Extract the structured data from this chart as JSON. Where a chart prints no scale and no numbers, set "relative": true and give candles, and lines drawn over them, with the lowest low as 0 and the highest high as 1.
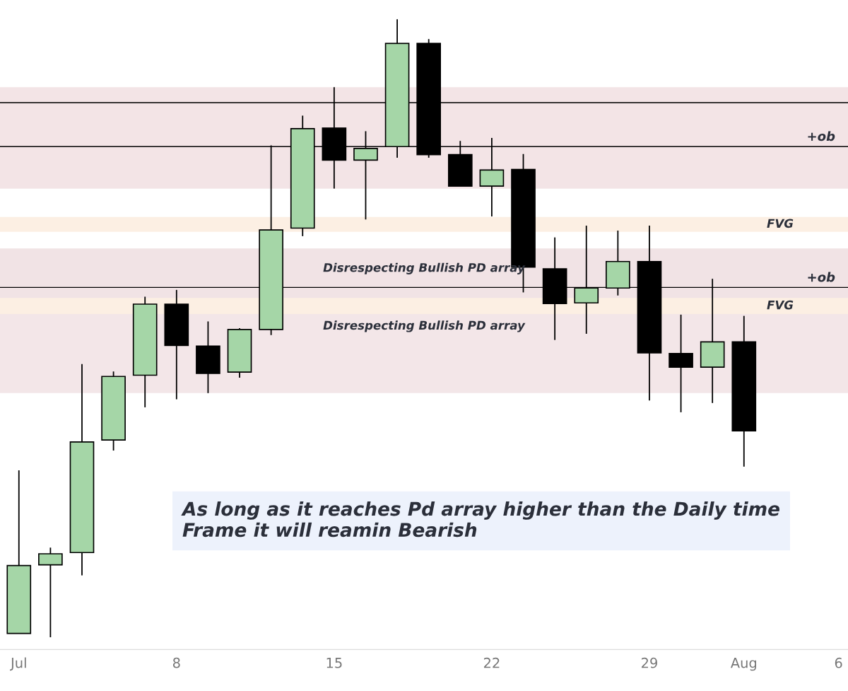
{
  "chart_data": {
    "type": "candlestick",
    "relative": true,
    "tick_labels": "x",
    "grid": false,
    "categories": [
      "Jul",
      null,
      null,
      null,
      null,
      "8",
      null,
      null,
      null,
      null,
      "15",
      null,
      null,
      null,
      null,
      "22",
      null,
      null,
      null,
      null,
      "29",
      null,
      null,
      "Aug",
      null,
      null,
      "6"
    ],
    "ohlc": [
      [
        0.006,
        0.27,
        0.006,
        0.116
      ],
      [
        0.117,
        0.145,
        0.0,
        0.135
      ],
      [
        0.137,
        0.442,
        0.1,
        0.316
      ],
      [
        0.319,
        0.43,
        0.302,
        0.422
      ],
      [
        0.424,
        0.551,
        0.372,
        0.539
      ],
      [
        0.539,
        0.562,
        0.385,
        0.472
      ],
      [
        0.471,
        0.511,
        0.395,
        0.427
      ],
      [
        0.429,
        0.5,
        0.42,
        0.498
      ],
      [
        0.498,
        0.796,
        0.489,
        0.659
      ],
      [
        0.662,
        0.844,
        0.649,
        0.823
      ],
      [
        0.824,
        0.89,
        0.726,
        0.772
      ],
      [
        0.772,
        0.819,
        0.676,
        0.791
      ],
      [
        0.794,
        1.0,
        0.776,
        0.961
      ],
      [
        0.961,
        0.968,
        0.776,
        0.781
      ],
      [
        0.781,
        0.803,
        0.73,
        0.73
      ],
      [
        0.73,
        0.808,
        0.681,
        0.756
      ],
      [
        0.757,
        0.782,
        0.558,
        0.599
      ],
      [
        0.596,
        0.647,
        0.481,
        0.54
      ],
      [
        0.541,
        0.666,
        0.491,
        0.565
      ],
      [
        0.565,
        0.658,
        0.553,
        0.608
      ],
      [
        0.608,
        0.666,
        0.383,
        0.46
      ],
      [
        0.459,
        0.522,
        0.364,
        0.437
      ],
      [
        0.437,
        0.58,
        0.379,
        0.478
      ],
      [
        0.478,
        0.52,
        0.276,
        0.334
      ],
      null,
      null,
      null
    ],
    "colors": [
      "#a5d6a7",
      "#a5d6a7",
      "#a5d6a7",
      "#a5d6a7",
      "#a5d6a7",
      "#000000",
      "#000000",
      "#a5d6a7",
      "#a5d6a7",
      "#a5d6a7",
      "#000000",
      "#a5d6a7",
      "#a5d6a7",
      "#000000",
      "#000000",
      "#a5d6a7",
      "#000000",
      "#000000",
      "#a5d6a7",
      "#a5d6a7",
      "#000000",
      "#000000",
      "#a5d6a7",
      "#000000",
      null,
      null,
      null
    ],
    "ref_lines": [
      {
        "axis": "y",
        "value": 0.865,
        "color": "#000000"
      },
      {
        "axis": "y",
        "value": 0.794,
        "label": "+ob",
        "color": "#000000"
      },
      {
        "axis": "y",
        "value": 0.566,
        "label": "+ob",
        "color": "#000000"
      }
    ],
    "bands": [
      {
        "axis": "y",
        "from": 0.726,
        "to": 0.89,
        "color": "#f3e4e6"
      },
      {
        "axis": "y",
        "from": 0.656,
        "to": 0.68,
        "label": "FVG",
        "color": "#fcefe3"
      },
      {
        "axis": "y",
        "from": 0.523,
        "to": 0.549,
        "label": "FVG",
        "color": "#fcefe3"
      },
      {
        "axis": "y",
        "from": 0.499,
        "to": 0.629,
        "label": "Disrespecting Bullish PD array",
        "color": "#f1e3e5"
      },
      {
        "axis": "y",
        "from": 0.395,
        "to": 0.539,
        "label": "Disrespecting Bullish PD array",
        "color": "#f3e6e8"
      }
    ],
    "annotations": [
      "As long as it reaches Pd array higher than the Daily time Frame it will reamin Bearish"
    ]
  }
}
